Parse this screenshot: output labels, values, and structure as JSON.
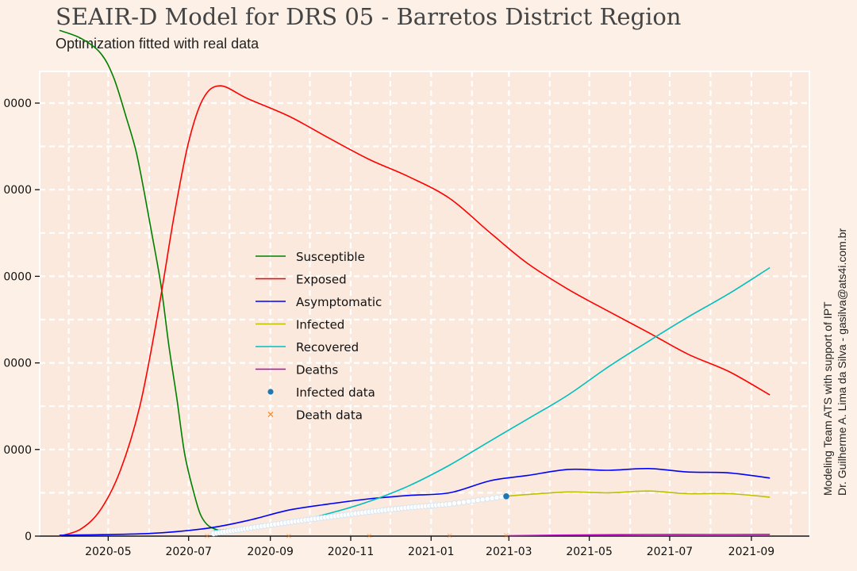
{
  "header": {
    "title": "SEAIR-D Model for DRS 05 - Barretos District Region",
    "subtitle": "Optimization fitted with real data"
  },
  "credits": {
    "line1": "Modeling Team ATS with support of IPT",
    "line2": "Dr. Guilherme A. Lima da Silva - gasilva@ats4i.com.br"
  },
  "chart_data": {
    "type": "line",
    "title": "SEAIR-D Model for DRS 05 - Barretos District Region",
    "subtitle": "Optimization fitted with real data",
    "xlabel": "",
    "ylabel": "",
    "x_range": [
      "2020-03-10",
      "2021-10-15"
    ],
    "ylim": [
      0,
      60000
    ],
    "x_ticks": [
      "2020-05",
      "2020-07",
      "2020-09",
      "2020-11",
      "2021-01",
      "2021-03",
      "2021-05",
      "2021-07",
      "2021-09"
    ],
    "y_ticks": [
      {
        "value": 0,
        "label": "0"
      },
      {
        "value": 10000,
        "label": "0000"
      },
      {
        "value": 20000,
        "label": "0000"
      },
      {
        "value": 30000,
        "label": "0000"
      },
      {
        "value": 40000,
        "label": "0000"
      },
      {
        "value": 50000,
        "label": "0000"
      }
    ],
    "grid": true,
    "legend_position": "center-left",
    "colors": {
      "background": "#fdf1e7",
      "plot_background": "#fbe9dd",
      "grid": "#ffffff"
    },
    "series": [
      {
        "name": "Susceptible",
        "kind": "line",
        "color": "#008000",
        "points": [
          [
            "2020-03-25",
            58400
          ],
          [
            "2020-04-10",
            57500
          ],
          [
            "2020-04-25",
            55800
          ],
          [
            "2020-05-05",
            53000
          ],
          [
            "2020-05-15",
            48200
          ],
          [
            "2020-05-22",
            44500
          ],
          [
            "2020-05-28",
            40000
          ],
          [
            "2020-06-03",
            35000
          ],
          [
            "2020-06-10",
            29000
          ],
          [
            "2020-06-16",
            22000
          ],
          [
            "2020-06-22",
            16000
          ],
          [
            "2020-06-28",
            9500
          ],
          [
            "2020-07-05",
            5000
          ],
          [
            "2020-07-10",
            2500
          ],
          [
            "2020-07-16",
            1200
          ],
          [
            "2020-07-25",
            600
          ]
        ]
      },
      {
        "name": "Exposed",
        "kind": "line",
        "color": "#ff0000",
        "points": [
          [
            "2020-03-25",
            0
          ],
          [
            "2020-04-10",
            800
          ],
          [
            "2020-04-25",
            3000
          ],
          [
            "2020-05-10",
            7500
          ],
          [
            "2020-05-25",
            15000
          ],
          [
            "2020-06-08",
            26000
          ],
          [
            "2020-06-20",
            37000
          ],
          [
            "2020-07-01",
            45500
          ],
          [
            "2020-07-12",
            50500
          ],
          [
            "2020-07-25",
            52000
          ],
          [
            "2020-08-15",
            50500
          ],
          [
            "2020-09-15",
            48500
          ],
          [
            "2020-10-15",
            46000
          ],
          [
            "2020-11-15",
            43500
          ],
          [
            "2020-12-15",
            41500
          ],
          [
            "2021-01-15",
            39000
          ],
          [
            "2021-02-15",
            35000
          ],
          [
            "2021-03-15",
            31500
          ],
          [
            "2021-04-15",
            28500
          ],
          [
            "2021-05-15",
            26000
          ],
          [
            "2021-06-15",
            23500
          ],
          [
            "2021-07-15",
            21000
          ],
          [
            "2021-08-15",
            19000
          ],
          [
            "2021-09-15",
            16300
          ]
        ]
      },
      {
        "name": "Asymptomatic",
        "kind": "line",
        "color": "#0000ff",
        "points": [
          [
            "2020-03-25",
            100
          ],
          [
            "2020-06-01",
            300
          ],
          [
            "2020-07-15",
            900
          ],
          [
            "2020-08-15",
            1800
          ],
          [
            "2020-09-15",
            3000
          ],
          [
            "2020-10-15",
            3700
          ],
          [
            "2020-11-15",
            4300
          ],
          [
            "2020-12-15",
            4700
          ],
          [
            "2021-01-15",
            5000
          ],
          [
            "2021-02-15",
            6400
          ],
          [
            "2021-03-15",
            7000
          ],
          [
            "2021-04-15",
            7700
          ],
          [
            "2021-05-15",
            7600
          ],
          [
            "2021-06-15",
            7800
          ],
          [
            "2021-07-15",
            7400
          ],
          [
            "2021-08-15",
            7300
          ],
          [
            "2021-09-15",
            6700
          ]
        ]
      },
      {
        "name": "Infected",
        "kind": "line",
        "color": "#bfbf00",
        "points": [
          [
            "2021-02-27",
            4600
          ],
          [
            "2021-03-15",
            4800
          ],
          [
            "2021-04-15",
            5100
          ],
          [
            "2021-05-15",
            5000
          ],
          [
            "2021-06-15",
            5200
          ],
          [
            "2021-07-15",
            4900
          ],
          [
            "2021-08-15",
            4900
          ],
          [
            "2021-09-15",
            4500
          ]
        ]
      },
      {
        "name": "Recovered",
        "kind": "line",
        "color": "#00bfbf",
        "points": [
          [
            "2020-07-20",
            600
          ],
          [
            "2020-09-15",
            1600
          ],
          [
            "2020-10-15",
            2600
          ],
          [
            "2020-11-15",
            4000
          ],
          [
            "2020-12-15",
            5800
          ],
          [
            "2021-01-15",
            8200
          ],
          [
            "2021-02-15",
            11000
          ],
          [
            "2021-03-15",
            13500
          ],
          [
            "2021-04-15",
            16300
          ],
          [
            "2021-05-15",
            19500
          ],
          [
            "2021-06-15",
            22500
          ],
          [
            "2021-07-15",
            25300
          ],
          [
            "2021-08-15",
            28000
          ],
          [
            "2021-09-15",
            31000
          ]
        ]
      },
      {
        "name": "Deaths",
        "kind": "line",
        "color": "#bf00bf",
        "points": [
          [
            "2021-03-01",
            50
          ],
          [
            "2021-04-15",
            120
          ],
          [
            "2021-06-15",
            180
          ],
          [
            "2021-08-15",
            180
          ],
          [
            "2021-09-15",
            200
          ]
        ]
      },
      {
        "name": "Infected data",
        "kind": "scatter",
        "marker": "circle",
        "color": "#1f77b4",
        "points": [
          [
            "2020-07-20",
            300
          ],
          [
            "2020-08-15",
            900
          ],
          [
            "2020-09-15",
            1600
          ],
          [
            "2020-10-15",
            2200
          ],
          [
            "2020-11-15",
            2800
          ],
          [
            "2020-12-15",
            3300
          ],
          [
            "2021-01-15",
            3700
          ],
          [
            "2021-02-27",
            4600
          ]
        ]
      },
      {
        "name": "Death data",
        "kind": "scatter",
        "marker": "x",
        "color": "#ff7f0e",
        "points": [
          [
            "2020-07-15",
            10
          ],
          [
            "2020-09-15",
            20
          ],
          [
            "2020-11-15",
            40
          ],
          [
            "2021-01-15",
            60
          ],
          [
            "2021-02-27",
            80
          ]
        ]
      }
    ]
  }
}
